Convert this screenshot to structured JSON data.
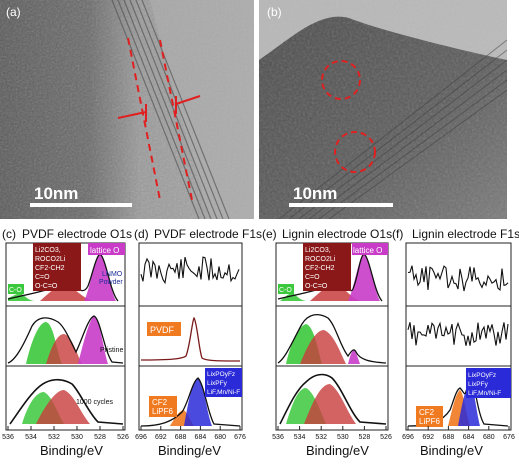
{
  "panels": {
    "a": {
      "label": "(a)",
      "scale": "10nm"
    },
    "b": {
      "label": "(b)",
      "scale": "10nm"
    },
    "c": {
      "label": "(c)",
      "title": "PVDF electrode  O1s",
      "box_text": [
        "Li2CO3,",
        "ROCO2Li",
        "CF2-CH2",
        "C=O",
        "O-C=O"
      ],
      "lattice": "lattice O",
      "co": "C-O",
      "lnmo": [
        "LNMO",
        "Powder"
      ],
      "pristine": "Pristine",
      "cycles": "1000 cycles",
      "ticks": [
        "536",
        "534",
        "532",
        "530",
        "528",
        "526"
      ]
    },
    "d": {
      "label": "(d)",
      "title": "PVDF electrode  F1s",
      "pvdf": "PVDF",
      "cf2": [
        "CF2",
        "LiPF6"
      ],
      "lix": [
        "LixPOyFz",
        "LixPFy",
        "LiF,Mn/Ni-F"
      ],
      "ticks": [
        "696",
        "692",
        "688",
        "684",
        "680",
        "676"
      ]
    },
    "e": {
      "label": "(e)",
      "title": "Lignin electrode  O1s",
      "box_text": [
        "Li2CO3,",
        "ROCO2Li",
        "CF2-CH2",
        "C=O",
        "O-C=O"
      ],
      "lattice": "lattice O",
      "co": "C-O",
      "ticks": [
        "536",
        "534",
        "532",
        "530",
        "528",
        "526"
      ]
    },
    "f": {
      "label": "(f)",
      "title": "Lignin electrode  F1s",
      "cf2": [
        "CF2",
        "LiPF6"
      ],
      "lix": [
        "LixPOyFz",
        "LixPFy",
        "LiF,Mn/Ni-F"
      ],
      "ticks": [
        "696",
        "692",
        "688",
        "684",
        "680",
        "676"
      ]
    }
  },
  "xlabel": "Binding/eV",
  "colors": {
    "green": "#3cc83c",
    "red": "#c83c3c",
    "magenta": "#c83cc8",
    "orange": "#f07a20",
    "blue": "#2a2ad8",
    "darkred": "#8a1818"
  }
}
